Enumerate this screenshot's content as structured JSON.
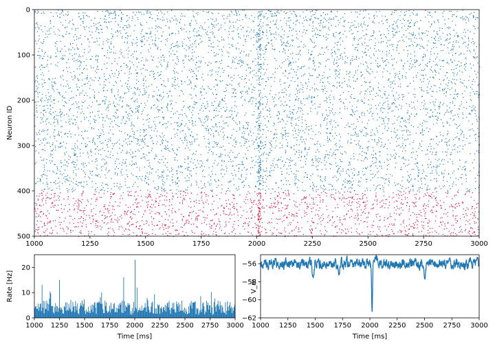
{
  "chart_data": [
    {
      "type": "scatter",
      "ylabel": "Neuron ID",
      "xlabel": "",
      "xlim": [
        1000,
        3000
      ],
      "ylim": [
        500,
        0
      ],
      "y_inverted": true,
      "xticks": [
        "1000",
        "1250",
        "1500",
        "1750",
        "2000",
        "2250",
        "2500",
        "2750",
        "3000"
      ],
      "yticks": [
        "0",
        "100",
        "200",
        "300",
        "400",
        "500"
      ],
      "grid": false,
      "series": [
        {
          "neuron_range": [
            0,
            400
          ],
          "color": "#1f77b4",
          "spike_count": 6200
        },
        {
          "neuron_range": [
            400,
            500
          ],
          "color": "#dc143c",
          "spike_count": 1700
        }
      ],
      "events": [
        {
          "time": 2010,
          "description": "synchronous burst"
        }
      ]
    },
    {
      "type": "bar",
      "xlabel": "Time [ms]",
      "ylabel": "Rate [Hz]",
      "xlim": [
        1000,
        3000
      ],
      "ylim": [
        0,
        25
      ],
      "xticks": [
        "1000",
        "1250",
        "1500",
        "1750",
        "2000",
        "2250",
        "2500",
        "2750",
        "3000"
      ],
      "yticks": [
        "0",
        "10",
        "20"
      ],
      "color": "#1f77b4",
      "bin_width": 1,
      "baseline_rate": 4,
      "peaks": [
        {
          "x": 1250,
          "y": 15
        },
        {
          "x": 1075,
          "y": 13
        },
        {
          "x": 1890,
          "y": 16
        },
        {
          "x": 2005,
          "y": 23
        },
        {
          "x": 2025,
          "y": 12
        }
      ]
    },
    {
      "type": "line",
      "xlabel": "Time [ms]",
      "ylabel": "V_m",
      "xlim": [
        1000,
        3000
      ],
      "ylim": [
        -62,
        -55
      ],
      "xticks": [
        "1000",
        "1250",
        "1500",
        "1750",
        "2000",
        "2250",
        "2500",
        "2750",
        "3000"
      ],
      "yticks": [
        "−56",
        "−58",
        "−60",
        "−62"
      ],
      "ytick_values": [
        -56,
        -58,
        -60,
        -62
      ],
      "color": "#1f77b4",
      "baseline": -56,
      "dips": [
        {
          "x": 1480,
          "y": -57.5
        },
        {
          "x": 1720,
          "y": -57.2
        },
        {
          "x": 2020,
          "y": -61.7
        },
        {
          "x": 2500,
          "y": -57.4
        }
      ],
      "peaks": [
        {
          "x": 2060,
          "y": -55.1
        }
      ]
    }
  ]
}
